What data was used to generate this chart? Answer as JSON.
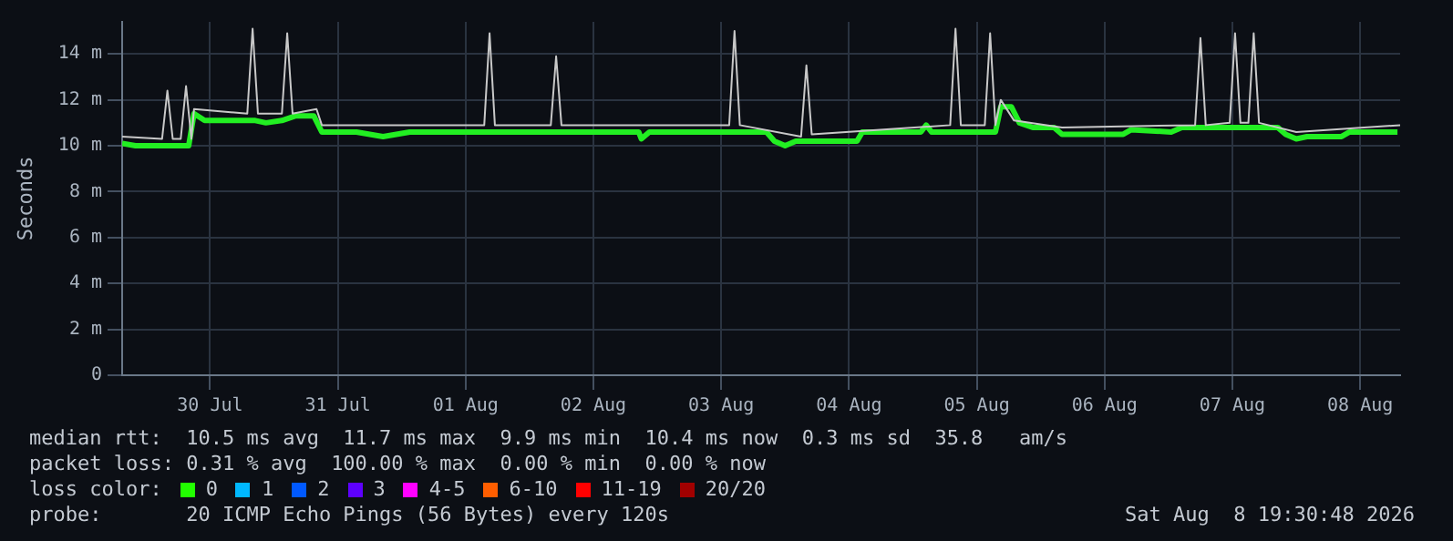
{
  "chart_data": {
    "type": "line",
    "ylabel": "Seconds",
    "ylim": [
      0,
      15.4
    ],
    "yticks": [
      0,
      {
        "value": 2,
        "label": "2 m"
      },
      {
        "value": 4,
        "label": "4 m"
      },
      {
        "value": 6,
        "label": "6 m"
      },
      {
        "value": 8,
        "label": "8 m"
      },
      {
        "value": 10,
        "label": "10 m"
      },
      {
        "value": 12,
        "label": "12 m"
      },
      {
        "value": 14,
        "label": "14 m"
      }
    ],
    "xlim": [
      "2026-07-29T19:30",
      "2026-08-08T19:30"
    ],
    "xticks": [
      {
        "value": "2026-07-30T12:00",
        "label": "30 Jul"
      },
      {
        "value": "2026-07-31T12:00",
        "label": "31 Jul"
      },
      {
        "value": "2026-08-01T12:00",
        "label": "01 Aug"
      },
      {
        "value": "2026-08-02T12:00",
        "label": "02 Aug"
      },
      {
        "value": "2026-08-03T12:00",
        "label": "03 Aug"
      },
      {
        "value": "2026-08-04T12:00",
        "label": "04 Aug"
      },
      {
        "value": "2026-08-05T12:00",
        "label": "05 Aug"
      },
      {
        "value": "2026-08-06T12:00",
        "label": "06 Aug"
      },
      {
        "value": "2026-08-07T12:00",
        "label": "07 Aug"
      },
      {
        "value": "2026-08-08T12:00",
        "label": "08 Aug"
      }
    ],
    "grid": true,
    "marker": "none",
    "line_style": "solid",
    "series": [
      {
        "color": "#c8c8c8",
        "x": [
          "2026-07-29T19:30",
          "2026-07-30T03:00",
          "2026-07-30T04:00",
          "2026-07-30T05:00",
          "2026-07-30T06:30",
          "2026-07-30T07:30",
          "2026-07-30T08:30",
          "2026-07-30T09:00",
          "2026-07-30T19:00",
          "2026-07-30T20:00",
          "2026-07-30T21:00",
          "2026-07-31T01:30",
          "2026-07-31T02:30",
          "2026-07-31T03:30",
          "2026-07-31T08:00",
          "2026-07-31T09:00",
          "2026-08-01T15:30",
          "2026-08-01T16:30",
          "2026-08-01T17:30",
          "2026-08-02T04:00",
          "2026-08-02T05:00",
          "2026-08-02T06:00",
          "2026-08-03T13:30",
          "2026-08-03T14:30",
          "2026-08-03T15:30",
          "2026-08-04T03:00",
          "2026-08-04T04:00",
          "2026-08-04T05:00",
          "2026-08-05T07:00",
          "2026-08-05T08:00",
          "2026-08-05T09:00",
          "2026-08-05T13:30",
          "2026-08-05T14:30",
          "2026-08-05T15:30",
          "2026-08-05T16:30",
          "2026-08-05T19:00",
          "2026-08-06T04:00",
          "2026-08-07T05:00",
          "2026-08-07T06:00",
          "2026-08-07T07:00",
          "2026-08-07T11:30",
          "2026-08-07T12:30",
          "2026-08-07T13:30",
          "2026-08-07T15:00",
          "2026-08-07T16:00",
          "2026-08-07T17:00",
          "2026-08-08T00:00",
          "2026-08-08T19:30"
        ],
        "values": [
          10.4,
          10.3,
          12.4,
          10.3,
          10.3,
          12.6,
          10.3,
          11.6,
          11.4,
          15.1,
          11.4,
          11.4,
          14.9,
          11.4,
          11.6,
          10.9,
          10.9,
          14.9,
          10.9,
          10.9,
          13.9,
          10.9,
          10.9,
          15.0,
          10.9,
          10.4,
          13.5,
          10.5,
          10.9,
          15.1,
          10.9,
          10.9,
          14.9,
          10.9,
          12.0,
          11.1,
          10.8,
          10.9,
          14.7,
          10.9,
          11.0,
          14.9,
          11.0,
          11.0,
          14.9,
          11.0,
          10.6,
          10.9
        ]
      },
      {
        "color": "#22ee22",
        "x": [
          "2026-07-29T19:30",
          "2026-07-29T22:00",
          "2026-07-30T08:00",
          "2026-07-30T09:00",
          "2026-07-30T11:00",
          "2026-07-30T20:30",
          "2026-07-30T22:30",
          "2026-07-31T01:30",
          "2026-07-31T04:00",
          "2026-07-31T07:30",
          "2026-07-31T09:00",
          "2026-07-31T15:30",
          "2026-07-31T20:30",
          "2026-08-01T01:30",
          "2026-08-02T00:00",
          "2026-08-02T20:30",
          "2026-08-02T21:00",
          "2026-08-02T22:30",
          "2026-08-03T20:30",
          "2026-08-03T22:00",
          "2026-08-04T00:00",
          "2026-08-04T02:00",
          "2026-08-04T13:30",
          "2026-08-04T14:30",
          "2026-08-05T01:30",
          "2026-08-05T02:30",
          "2026-08-05T03:30",
          "2026-08-05T15:30",
          "2026-08-05T16:30",
          "2026-08-05T18:30",
          "2026-08-05T20:00",
          "2026-08-05T22:30",
          "2026-08-06T02:30",
          "2026-08-06T04:00",
          "2026-08-06T15:30",
          "2026-08-06T17:00",
          "2026-08-07T00:30",
          "2026-08-07T02:30",
          "2026-08-07T20:30",
          "2026-08-07T22:00",
          "2026-08-08T00:00",
          "2026-08-08T02:00",
          "2026-08-08T08:30",
          "2026-08-08T10:00",
          "2026-08-08T19:00"
        ],
        "values": [
          10.1,
          10.0,
          10.0,
          11.4,
          11.1,
          11.1,
          11.0,
          11.1,
          11.3,
          11.3,
          10.6,
          10.6,
          10.4,
          10.6,
          10.6,
          10.6,
          10.3,
          10.6,
          10.6,
          10.2,
          10.0,
          10.2,
          10.2,
          10.6,
          10.6,
          10.9,
          10.6,
          10.6,
          11.7,
          11.7,
          11.0,
          10.8,
          10.8,
          10.5,
          10.5,
          10.7,
          10.6,
          10.8,
          10.8,
          10.5,
          10.3,
          10.4,
          10.4,
          10.6,
          10.6
        ]
      }
    ],
    "annotations": [
      "median rtt:  10.5 ms avg  11.7 ms max  9.9 ms min  10.4 ms now  0.3 ms sd  35.8   am/s",
      "packet loss: 0.31 % avg  100.00 % max  0.00 % min  0.00 % now",
      "loss color:",
      "0",
      "1",
      "2",
      "3",
      "4-5",
      "6-10",
      "11-19",
      "20/20",
      "probe:       20 ICMP Echo Pings (56 Bytes) every 120s",
      "Sat Aug  8 19:30:48 2026"
    ]
  }
}
